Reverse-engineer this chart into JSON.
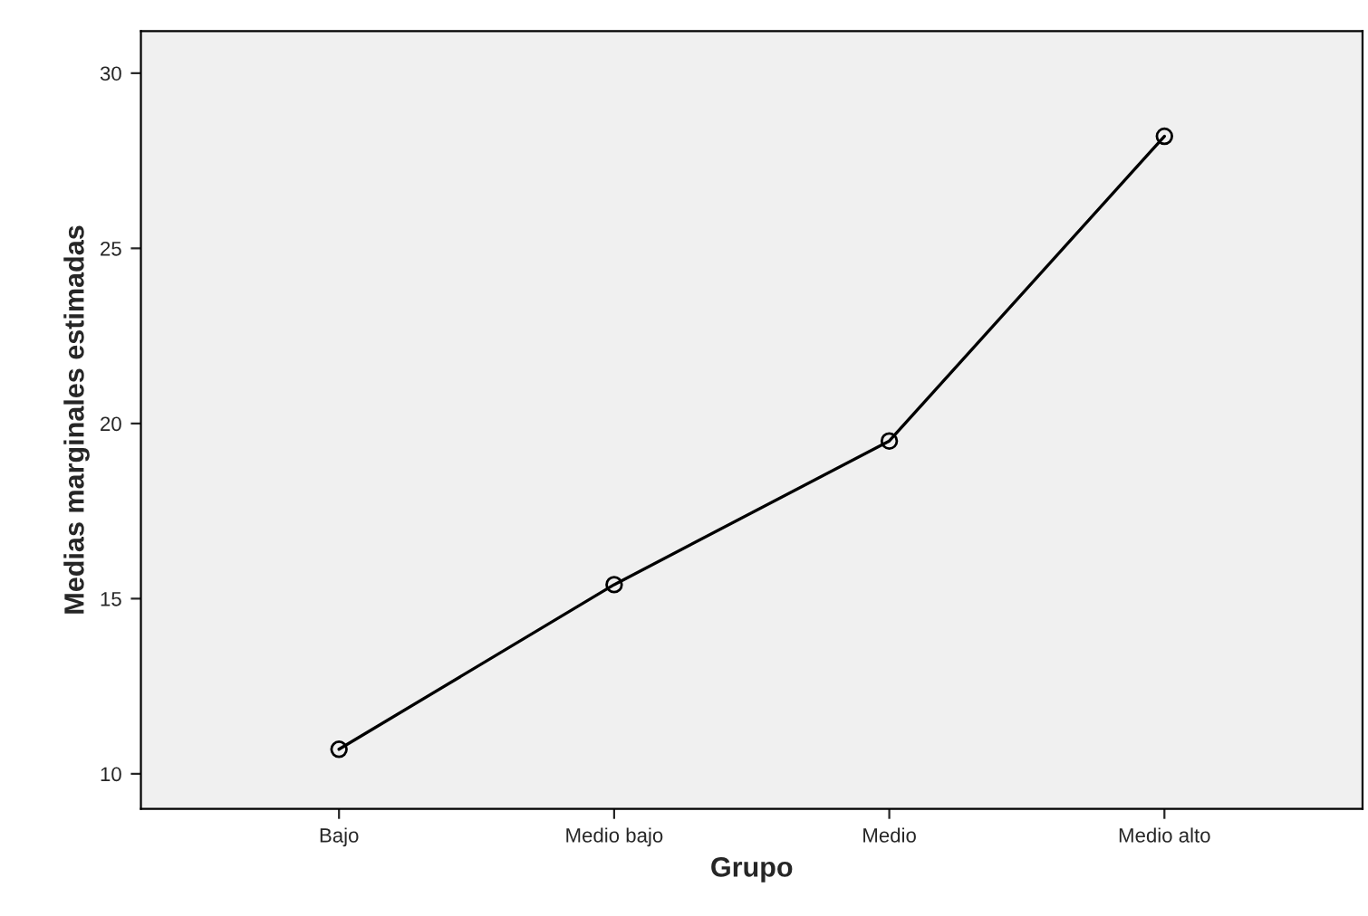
{
  "chart_data": {
    "type": "line",
    "xlabel": "Grupo",
    "ylabel": "Medias marginales estimadas",
    "categories": [
      "Bajo",
      "Medio bajo",
      "Medio",
      "Medio alto"
    ],
    "series": [
      {
        "color": "#000000",
        "values": [
          10.7,
          15.4,
          19.5,
          28.2
        ]
      }
    ],
    "ylim": [
      9,
      31.2
    ],
    "yticks": [
      10,
      15,
      20,
      25,
      30
    ],
    "marker": "circle",
    "line_style": "solid",
    "grid": false,
    "legend": false
  }
}
